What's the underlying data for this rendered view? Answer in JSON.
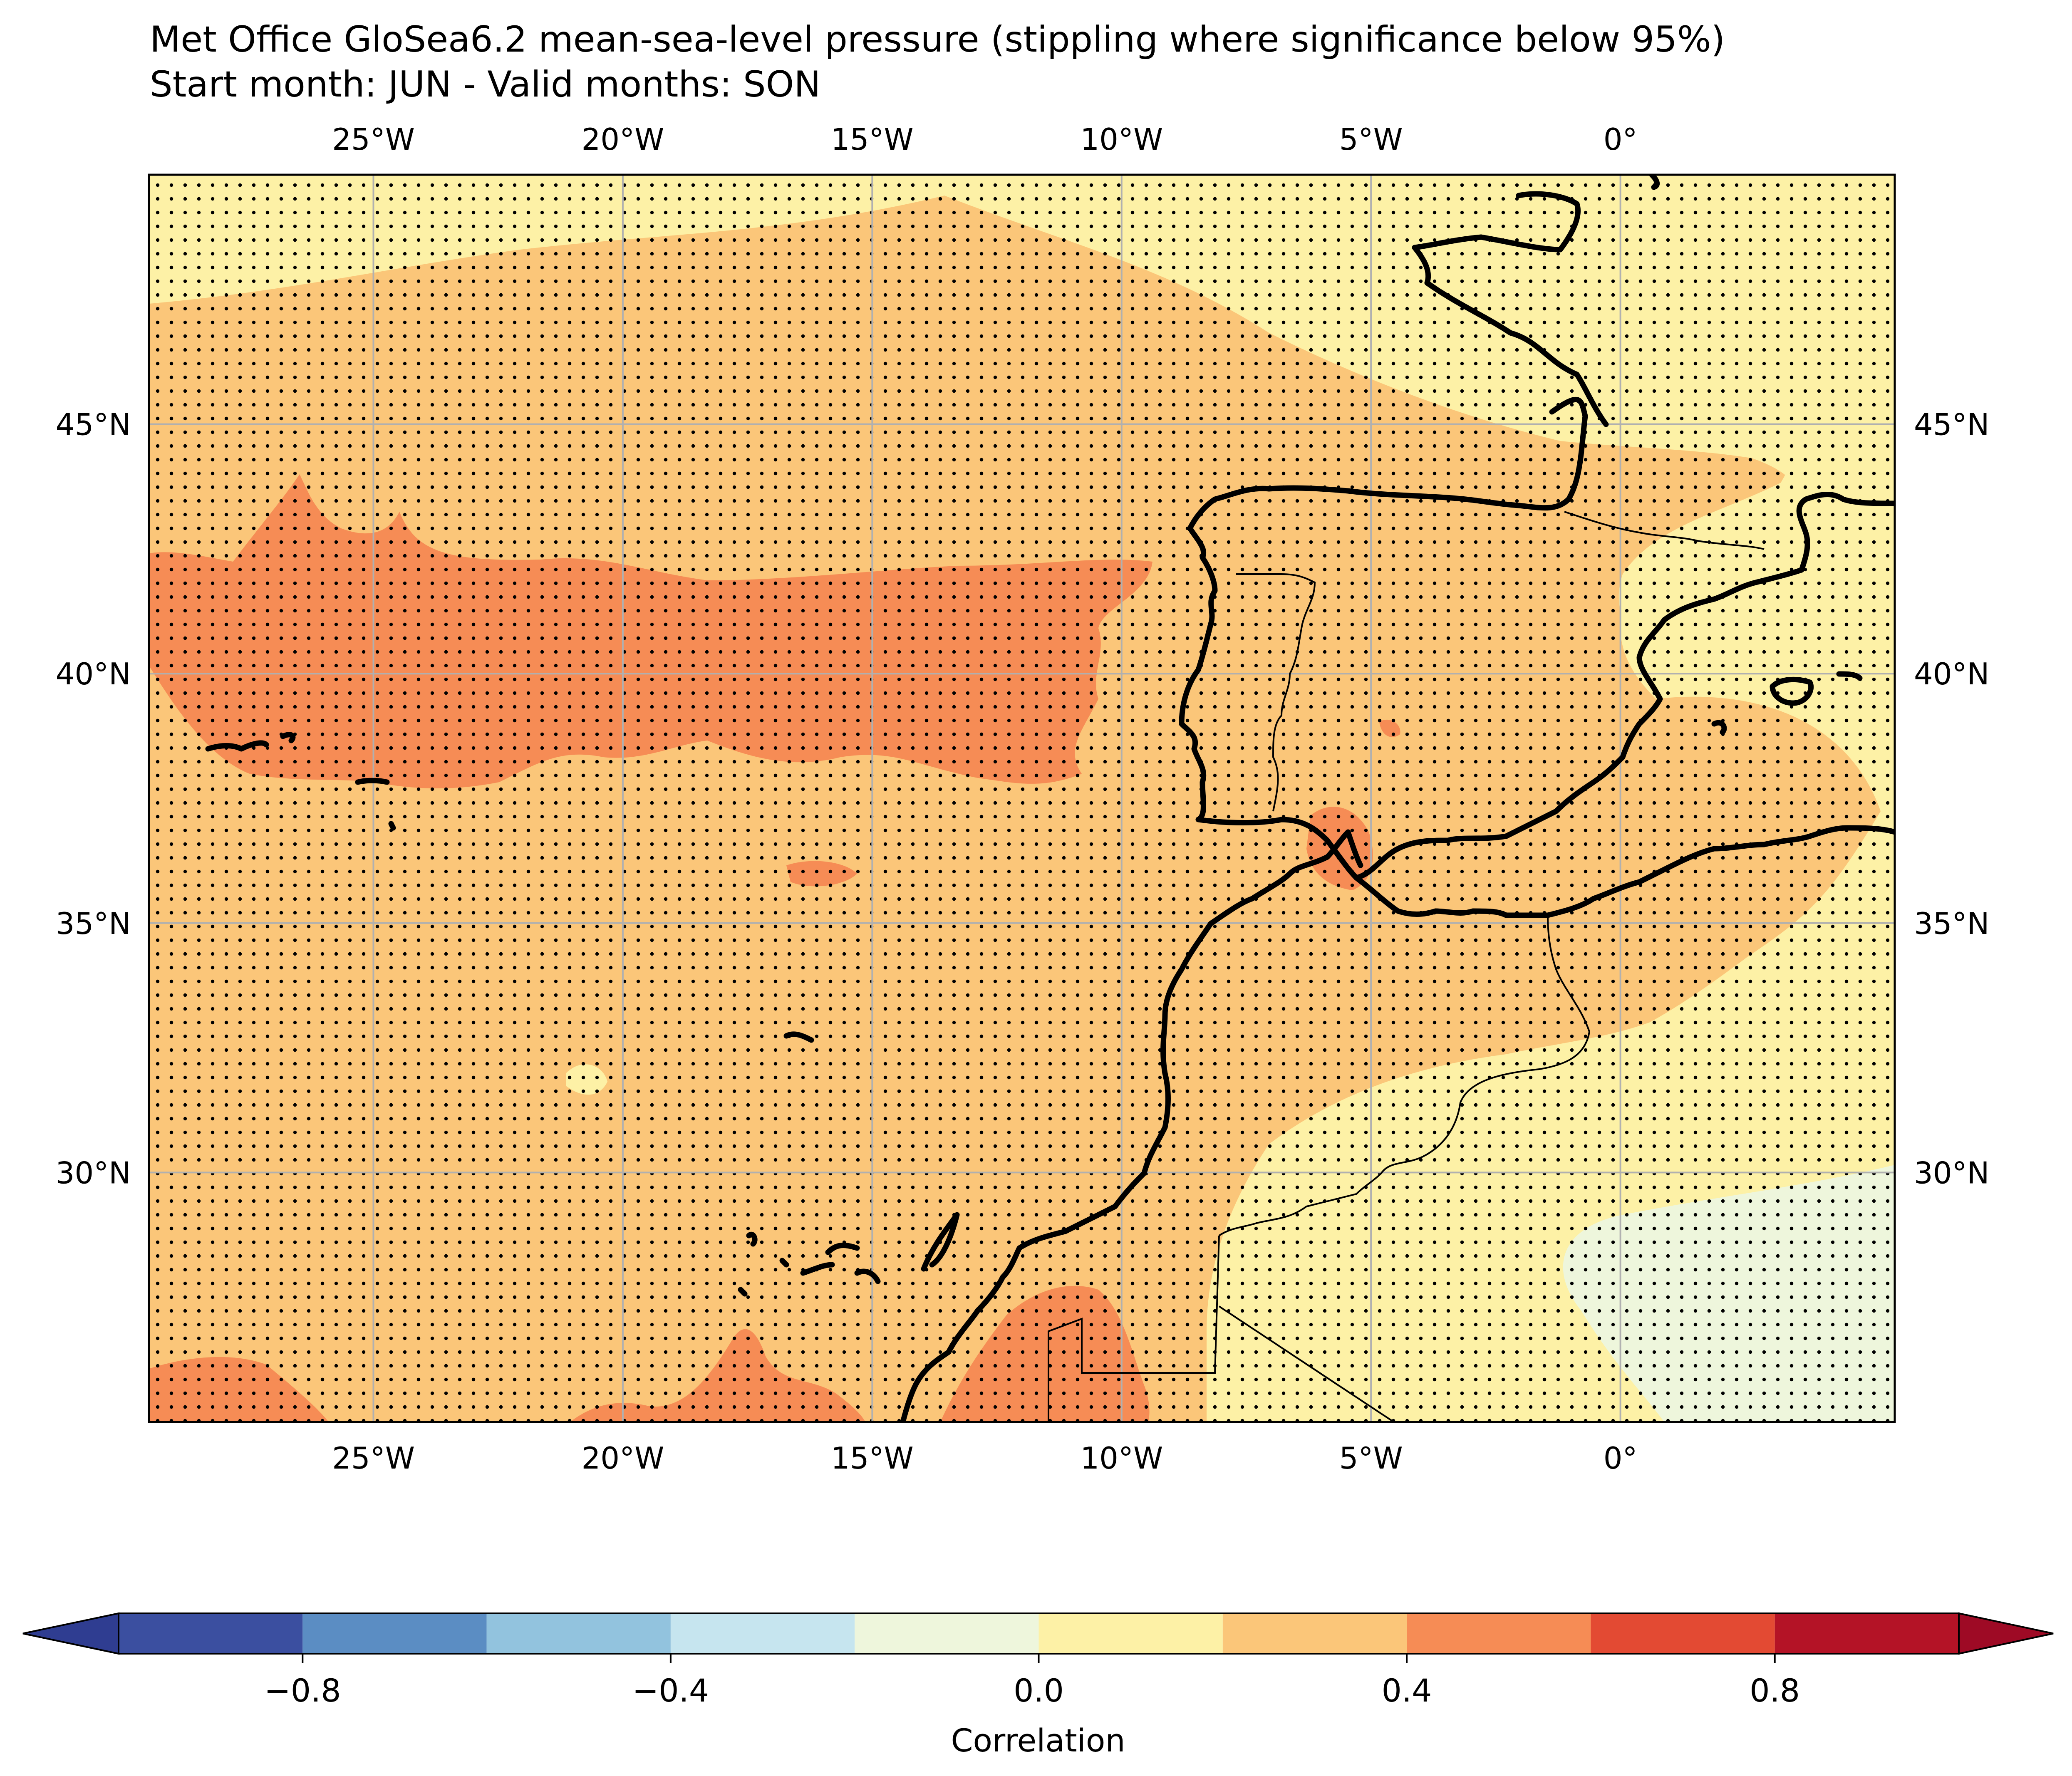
{
  "title": {
    "line1": "Met Office GloSea6.2 mean-sea-level pressure (stippling where significance below 95%)",
    "line2": "Start month: JUN - Valid months: SON"
  },
  "map": {
    "lon_range": [
      -29.5,
      5.5
    ],
    "lat_range": [
      25,
      50
    ],
    "lon_ticks": [
      {
        "value": -25,
        "label": "25°W"
      },
      {
        "value": -20,
        "label": "20°W"
      },
      {
        "value": -15,
        "label": "15°W"
      },
      {
        "value": -10,
        "label": "10°W"
      },
      {
        "value": -5,
        "label": "5°W"
      },
      {
        "value": 0,
        "label": "0°"
      }
    ],
    "lat_ticks": [
      {
        "value": 45,
        "label": "45°N"
      },
      {
        "value": 40,
        "label": "40°N"
      },
      {
        "value": 35,
        "label": "35°N"
      },
      {
        "value": 30,
        "label": "30°N"
      }
    ],
    "gridlines": true,
    "stippling": "significance below 95%"
  },
  "colorbar": {
    "label": "Correlation",
    "levels": [
      -1.0,
      -0.8,
      -0.6,
      -0.4,
      -0.2,
      0.0,
      0.2,
      0.4,
      0.6,
      0.8,
      1.0
    ],
    "colors": [
      "#3b4fa0",
      "#5b8dc3",
      "#92c3de",
      "#c6e5ef",
      "#eef6dc",
      "#fdf1a6",
      "#fbc679",
      "#f68c55",
      "#e34a33",
      "#b41326"
    ],
    "under_color": "#2f3d91",
    "over_color": "#9e0a25",
    "tick_values": [
      -0.8,
      -0.4,
      0.0,
      0.4,
      0.8
    ],
    "tick_labels": [
      "−0.8",
      "−0.4",
      "0.0",
      "0.4",
      "0.8"
    ]
  },
  "chart_data": {
    "type": "heatmap",
    "variable": "mean-sea-level pressure correlation",
    "x_range": [
      -29.5,
      5.5
    ],
    "y_range": [
      25,
      50
    ],
    "regions": [
      {
        "value_range": [
          0.4,
          0.6
        ],
        "description": "band along 37-42N from 29W to 10W"
      },
      {
        "value_range": [
          0.2,
          0.4
        ],
        "description": "most of the Atlantic domain"
      },
      {
        "value_range": [
          0.0,
          0.2
        ],
        "description": "Bay of Biscay, NE Spain, Sahara interior"
      },
      {
        "value_range": [
          -0.2,
          0.0
        ],
        "description": "SE corner (Algeria)"
      }
    ]
  }
}
